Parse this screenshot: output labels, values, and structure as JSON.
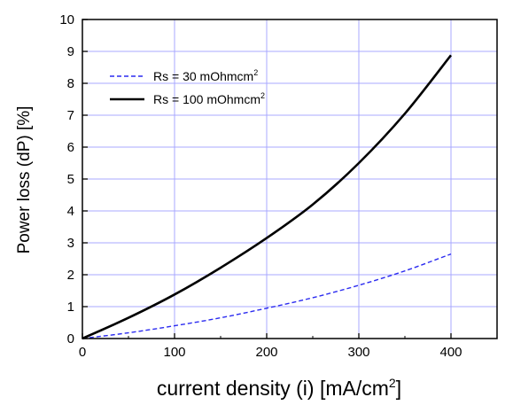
{
  "chart_data": {
    "type": "line",
    "xlabel": "current density (i)  [mA/cm",
    "xlabel_sup": "2",
    "xlabel_end": "]",
    "ylabel": "Power loss (dP) [%]",
    "xlim": [
      0,
      450
    ],
    "ylim": [
      0,
      10
    ],
    "x_ticks": [
      0,
      100,
      200,
      300,
      400
    ],
    "y_ticks": [
      0,
      1,
      2,
      3,
      4,
      5,
      6,
      7,
      8,
      9,
      10
    ],
    "x_tick_labels": [
      "0",
      "100",
      "200",
      "300",
      "400"
    ],
    "y_tick_labels": [
      "0",
      "1",
      "2",
      "3",
      "4",
      "5",
      "6",
      "7",
      "8",
      "9",
      "10"
    ],
    "grid": true,
    "legend": "top-left",
    "series": [
      {
        "name": "Rs =   30 mOhmcm",
        "name_sup": "2",
        "style": "dashed",
        "color": "#2b2bf0",
        "x": [
          0,
          50,
          100,
          150,
          200,
          250,
          300,
          350,
          400
        ],
        "y": [
          0,
          0.18,
          0.4,
          0.65,
          0.95,
          1.28,
          1.67,
          2.12,
          2.65
        ]
      },
      {
        "name": "Rs = 100 mOhmcm",
        "name_sup": "2",
        "style": "solid",
        "color": "#000000",
        "x": [
          0,
          50,
          100,
          150,
          200,
          250,
          300,
          350,
          400
        ],
        "y": [
          0,
          0.65,
          1.38,
          2.22,
          3.15,
          4.2,
          5.5,
          7.05,
          8.88
        ]
      }
    ]
  }
}
